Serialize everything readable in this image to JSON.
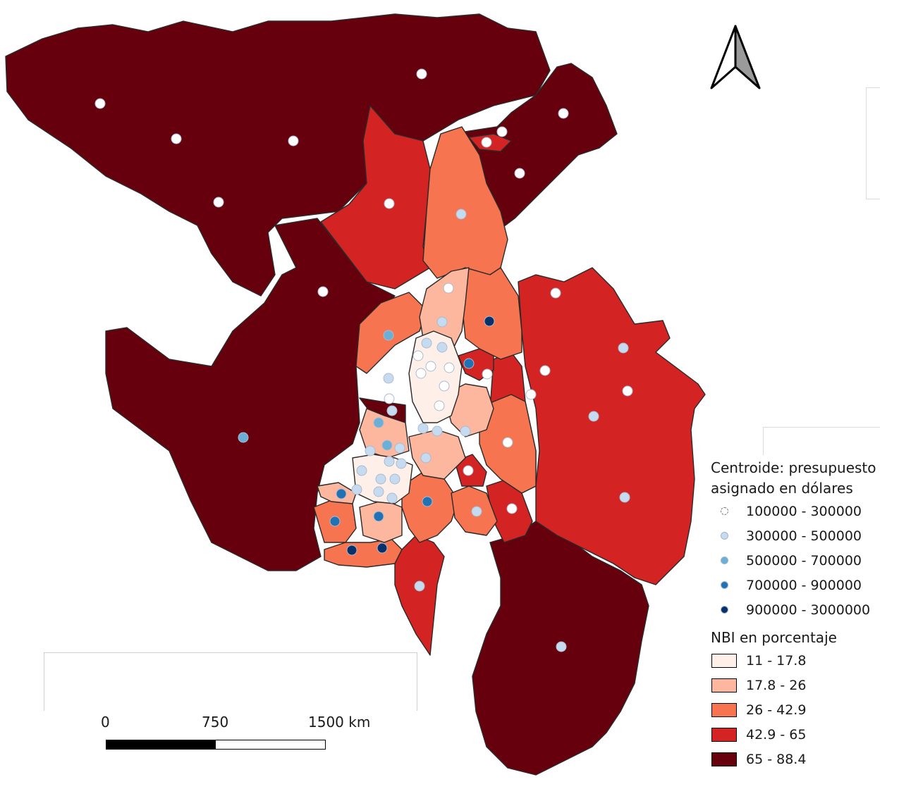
{
  "legend_points": {
    "title_line1": "Centroide: presupuesto",
    "title_line2": "asignado en dólares",
    "classes": [
      {
        "label": "100000 - 300000",
        "color": "#ffffff"
      },
      {
        "label": "300000 - 500000",
        "color": "#c6dbef"
      },
      {
        "label": "500000 - 700000",
        "color": "#6baed6"
      },
      {
        "label": "700000 - 900000",
        "color": "#2171b5"
      },
      {
        "label": "900000 - 3000000",
        "color": "#08306b"
      }
    ]
  },
  "legend_polygons": {
    "title": "NBI en porcentaje",
    "classes": [
      {
        "label": "11 - 17.8",
        "color": "#fef0e9"
      },
      {
        "label": "17.8 - 26",
        "color": "#fcb79e"
      },
      {
        "label": "26 - 42.9",
        "color": "#f6744f"
      },
      {
        "label": "42.9 - 65",
        "color": "#d32322"
      },
      {
        "label": "65 - 88.4",
        "color": "#67000d"
      }
    ]
  },
  "scale_bar": {
    "labels": [
      "0",
      "750",
      "1500 km"
    ]
  },
  "north_arrow": {
    "icon": "north-arrow-icon"
  }
}
